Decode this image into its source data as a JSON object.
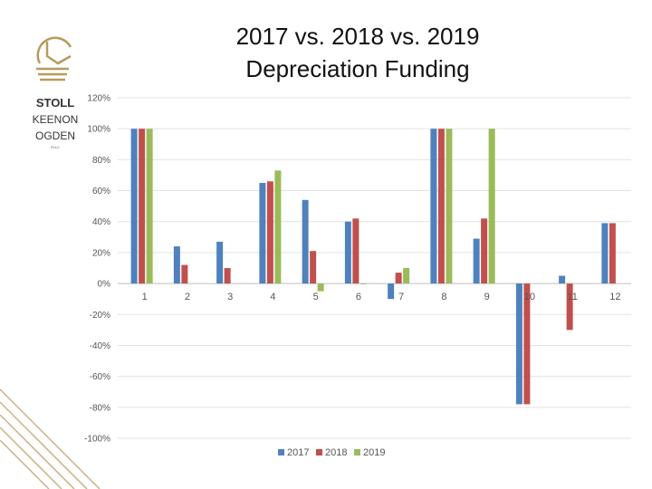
{
  "logo": {
    "line1": "STOLL",
    "line2": "KEENON",
    "line3": "OGDEN",
    "line4": "PLLC",
    "color": "#b89a5a"
  },
  "chart_data": {
    "type": "bar",
    "title": "2017 vs. 2018 vs. 2019",
    "subtitle": "Depreciation Funding",
    "categories": [
      "1",
      "2",
      "3",
      "4",
      "5",
      "6",
      "7",
      "8",
      "9",
      "10",
      "11",
      "12"
    ],
    "series": [
      {
        "name": "2017",
        "color": "#4f81bd",
        "values": [
          100,
          24,
          27,
          65,
          54,
          40,
          -10,
          100,
          29,
          -78,
          5,
          39
        ]
      },
      {
        "name": "2018",
        "color": "#c0504d",
        "values": [
          100,
          12,
          10,
          66,
          21,
          42,
          7,
          100,
          42,
          -78,
          -30,
          39
        ]
      },
      {
        "name": "2019",
        "color": "#9bbb59",
        "values": [
          100,
          0,
          0,
          73,
          -5,
          -0.5,
          10,
          100,
          100,
          0,
          0,
          0
        ]
      }
    ],
    "yticks": [
      "120%",
      "100%",
      "80%",
      "60%",
      "40%",
      "20%",
      "0%",
      "-20%",
      "-40%",
      "-60%",
      "-80%",
      "-100%"
    ],
    "ylim": [
      -100,
      120
    ],
    "grid": true,
    "legend": "bottom-center"
  }
}
